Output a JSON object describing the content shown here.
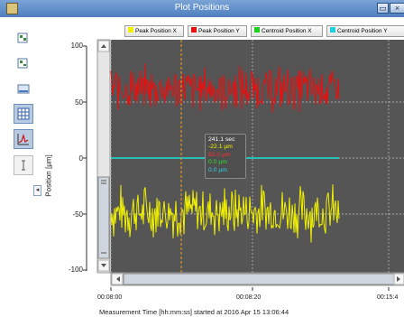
{
  "window": {
    "title": "Plot Positions"
  },
  "legend": [
    {
      "label": "Peak Position X",
      "color": "#f2f200"
    },
    {
      "label": "Peak Position Y",
      "color": "#e61010"
    },
    {
      "label": "Centroid Position X",
      "color": "#20d020"
    },
    {
      "label": "Centroid Position Y",
      "color": "#20d0e0"
    }
  ],
  "tooltip": {
    "time": "241.1 sec",
    "peak_x": "-22.1 µm",
    "peak_y": "82.0 µm",
    "centroid_x": "0.0 µm",
    "centroid_y": "0.0 µm"
  },
  "chart_data": {
    "type": "line",
    "ylabel": "Position [µm]",
    "xlabel": "Measurement Time [hh:mm:ss] started at 2016 Apr 15 13:06:44",
    "y_ticks": [
      "100",
      "50",
      "0",
      "-50",
      "-100"
    ],
    "x_ticks": [
      "00:08:00",
      "00:08:20",
      "00:15:4"
    ],
    "ylim": [
      -100,
      100
    ],
    "series": [
      {
        "name": "Peak Position X",
        "color": "#f2f200",
        "mean": -48,
        "spread": 28
      },
      {
        "name": "Peak Position Y",
        "color": "#e61010",
        "mean": 62,
        "spread": 24
      },
      {
        "name": "Centroid Position X",
        "color": "#20d020",
        "mean": 0,
        "spread": 0
      },
      {
        "name": "Centroid Position Y",
        "color": "#20d0e0",
        "mean": 0,
        "spread": 0
      }
    ]
  }
}
